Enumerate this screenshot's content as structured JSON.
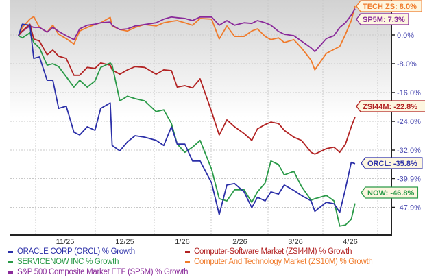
{
  "chart_data": {
    "type": "line",
    "title": "",
    "xlabel": "",
    "ylabel": "",
    "x_tick_labels": [
      "11/25",
      "12/25",
      "1/26",
      "2/26",
      "3/26",
      "4/26"
    ],
    "y_tick_labels": [
      "0.0%",
      "-8.0%",
      "-16.0%",
      "-24.0%",
      "-32.0%",
      "-39.9%",
      "-47.9%"
    ],
    "y_ticks": [
      0,
      -8,
      -16,
      -24,
      -32,
      -39.9,
      -47.9
    ],
    "ylim": [
      -55.6,
      8.8
    ],
    "grid": true,
    "legend_position": "bottom",
    "x": [
      "2025-10-23",
      "2025-10-25",
      "2025-10-29",
      "2025-10-31",
      "2025-11-03",
      "2025-11-07",
      "2025-11-10",
      "2025-11-13",
      "2025-11-17",
      "2025-11-21",
      "2025-11-24",
      "2025-11-28",
      "2025-12-02",
      "2025-12-05",
      "2025-12-10",
      "2025-12-11",
      "2025-12-15",
      "2025-12-19",
      "2025-12-23",
      "2025-12-28",
      "2026-01-03",
      "2026-01-07",
      "2026-01-11",
      "2026-01-14",
      "2026-01-18",
      "2026-01-22",
      "2026-01-26",
      "2026-02-01",
      "2026-02-05",
      "2026-02-09",
      "2026-02-13",
      "2026-02-18",
      "2026-02-22",
      "2026-02-25",
      "2026-03-01",
      "2026-03-04",
      "2026-03-08",
      "2026-03-11",
      "2026-03-16",
      "2026-03-20",
      "2026-03-25",
      "2026-03-27",
      "2026-04-02",
      "2026-04-06",
      "2026-04-09",
      "2026-04-12",
      "2026-04-15",
      "2026-04-17"
    ],
    "series": [
      {
        "name": "ORACLE CORP (ORCL) % Growth",
        "tag": "ORCL: -35.8%",
        "color": "#2b2fa8",
        "values": [
          -0.2,
          3.0,
          2.7,
          -6.5,
          -6.1,
          -12.6,
          -12.6,
          -20.4,
          -19.8,
          -27.0,
          -27.8,
          -25.5,
          -26.5,
          -20.4,
          -18.9,
          -30.7,
          -32.2,
          -29.7,
          -28.0,
          -28.4,
          -29.3,
          -30.7,
          -25.5,
          -30.3,
          -30.3,
          -35.0,
          -35.0,
          -41.1,
          -49.9,
          -41.7,
          -41.3,
          -43.6,
          -48.0,
          -45.1,
          -46.1,
          -43.6,
          -44.2,
          -41.7,
          -43.2,
          -44.6,
          -46.1,
          -49.0,
          -46.5,
          -46.9,
          -49.3,
          -42.7,
          -35.4,
          -35.8
        ]
      },
      {
        "name": "Computer-Software Market (ZSI44M) % Growth",
        "tag": "ZSI44M: -22.8%",
        "color": "#b22222",
        "values": [
          -0.2,
          1.1,
          3.0,
          -1.1,
          -1.7,
          -5.5,
          -4.2,
          -5.9,
          -6.5,
          -11.2,
          -11.2,
          -9.0,
          -9.3,
          -7.8,
          -8.4,
          -9.7,
          -10.9,
          -9.7,
          -8.8,
          -9.0,
          -10.9,
          -9.7,
          -9.9,
          -14.5,
          -14.1,
          -14.7,
          -12.2,
          -21.3,
          -27.8,
          -23.6,
          -25.5,
          -27.4,
          -29.3,
          -26.1,
          -24.9,
          -24.2,
          -24.6,
          -26.5,
          -28.4,
          -29.3,
          -32.6,
          -33.1,
          -31.6,
          -31.2,
          -32.6,
          -30.3,
          -25.5,
          -22.8
        ]
      },
      {
        "name": "SERVICENOW INC % Growth",
        "tag": "NOW: -46.8%",
        "color": "#2a9a48",
        "values": [
          -0.2,
          -0.8,
          0.6,
          -2.1,
          -3.6,
          -8.4,
          -8.0,
          -8.8,
          -11.6,
          -14.5,
          -12.6,
          -14.5,
          -12.8,
          -9.0,
          -7.8,
          -8.4,
          -18.3,
          -17.0,
          -17.7,
          -18.3,
          -21.3,
          -20.8,
          -24.6,
          -30.3,
          -32.6,
          -31.2,
          -29.3,
          -37.3,
          -45.5,
          -46.1,
          -43.0,
          -43.0,
          -46.5,
          -43.6,
          -41.1,
          -35.0,
          -36.0,
          -38.9,
          -37.9,
          -42.1,
          -45.9,
          -45.5,
          -44.6,
          -46.1,
          -53.1,
          -52.8,
          -51.2,
          -46.8
        ]
      },
      {
        "name": "Computer And Technology Market (ZS10M) % Growth",
        "tag": "TECH ZS: 8.0%",
        "color": "#f07a2a",
        "values": [
          -0.2,
          2.1,
          4.4,
          5.1,
          2.1,
          0.8,
          2.7,
          0.2,
          -1.0,
          -2.5,
          1.1,
          2.1,
          2.9,
          3.4,
          4.9,
          2.5,
          1.5,
          1.1,
          2.1,
          2.9,
          2.5,
          3.4,
          3.8,
          4.0,
          3.4,
          2.7,
          4.6,
          4.4,
          -1.1,
          2.5,
          -0.4,
          -0.4,
          1.1,
          1.7,
          -0.4,
          -1.3,
          -0.8,
          -2.1,
          -1.3,
          -3.6,
          -7.0,
          -9.7,
          -5.1,
          -4.0,
          -3.2,
          0.2,
          4.0,
          8.0
        ]
      },
      {
        "name": "S&P 500 Composite Market ETF (SP5M) % Growth",
        "tag": "SP5M: 7.3%",
        "color": "#8a2a9a",
        "values": [
          -0.2,
          1.0,
          2.5,
          2.1,
          2.1,
          0.8,
          2.1,
          1.0,
          -0.2,
          -1.3,
          1.7,
          2.7,
          3.0,
          3.4,
          3.6,
          2.7,
          1.5,
          1.7,
          2.5,
          2.9,
          3.4,
          4.4,
          5.0,
          4.8,
          4.6,
          4.0,
          5.0,
          5.0,
          2.7,
          4.0,
          2.7,
          3.4,
          3.2,
          4.0,
          3.4,
          2.7,
          1.0,
          0.2,
          -0.2,
          -1.7,
          -3.6,
          -4.6,
          -1.0,
          -0.2,
          2.1,
          3.4,
          5.5,
          7.3
        ]
      }
    ],
    "colors": {
      "axis_label": "#4a4ab0",
      "tag_fill": "#fdf6e0"
    }
  }
}
